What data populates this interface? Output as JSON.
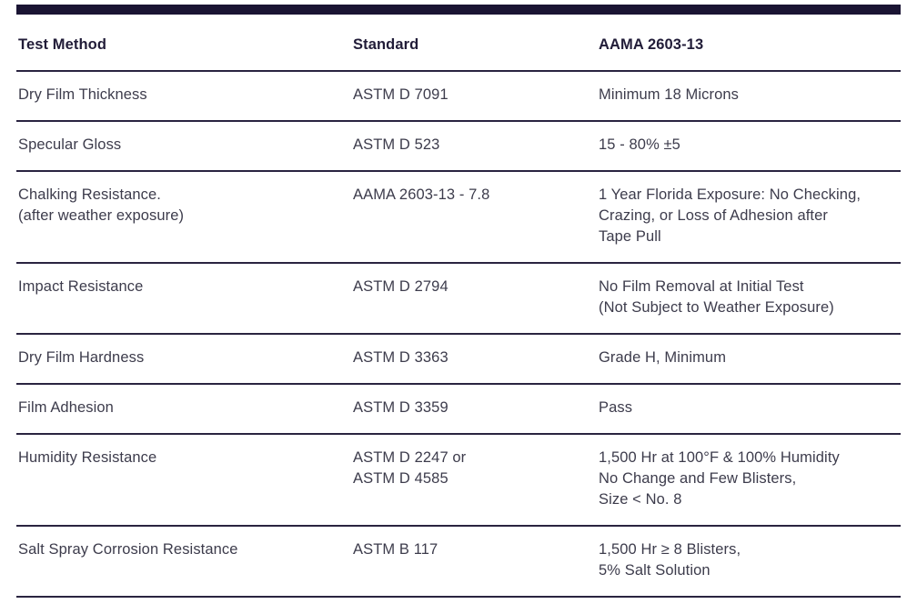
{
  "table": {
    "columns": [
      {
        "label": "Test Method"
      },
      {
        "label": "Standard"
      },
      {
        "label": "AAMA 2603-13"
      }
    ],
    "rows": [
      {
        "method": "Dry Film Thickness",
        "standard": "ASTM D 7091",
        "requirement": "Minimum 18 Microns"
      },
      {
        "method": "Specular Gloss",
        "standard": "ASTM D 523",
        "requirement": "15 - 80% ±5"
      },
      {
        "method": "Chalking Resistance.\n(after weather exposure)",
        "standard": "AAMA 2603-13 - 7.8",
        "requirement": "1 Year Florida Exposure: No Checking,\nCrazing, or Loss of Adhesion after\nTape Pull"
      },
      {
        "method": "Impact Resistance",
        "standard": "ASTM D 2794",
        "requirement": "No Film Removal at Initial Test\n(Not Subject to Weather Exposure)"
      },
      {
        "method": "Dry Film Hardness",
        "standard": "ASTM D 3363",
        "requirement": "Grade H, Minimum"
      },
      {
        "method": "Film Adhesion",
        "standard": "ASTM D 3359",
        "requirement": "Pass"
      },
      {
        "method": "Humidity Resistance",
        "standard": "ASTM D 2247 or\nASTM D 4585",
        "requirement": "1,500 Hr at 100°F & 100% Humidity\nNo Change and Few Blisters,\nSize < No. 8"
      },
      {
        "method": "Salt Spray Corrosion Resistance",
        "standard": "ASTM B 117",
        "requirement": "1,500 Hr ≥ 8 Blisters,\n5% Salt Solution"
      }
    ]
  },
  "colors": {
    "accent_bar": "#1a1433",
    "divider": "#2a2440",
    "header_text": "#211c38",
    "body_text": "#3d3c4c"
  }
}
